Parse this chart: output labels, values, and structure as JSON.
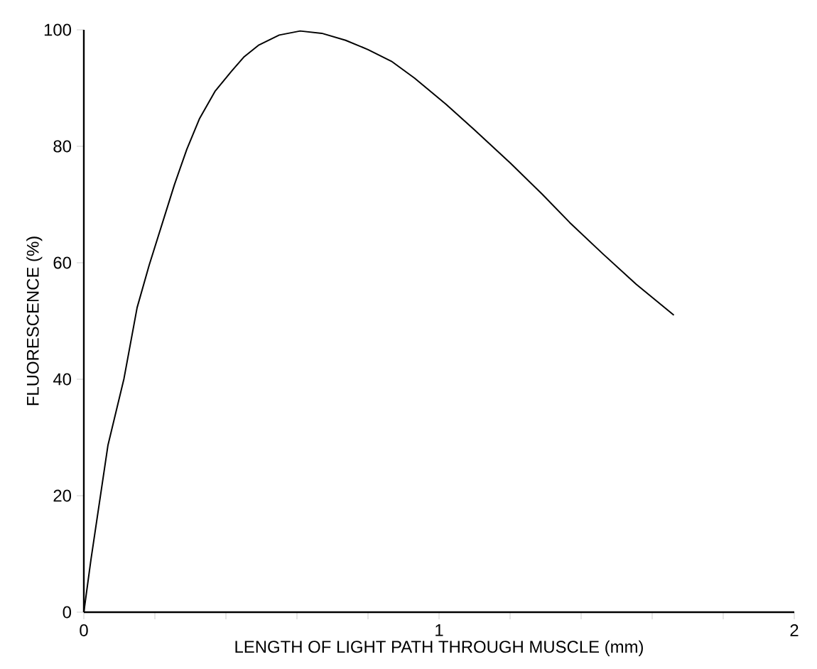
{
  "chart_data": {
    "type": "line",
    "xlabel": "LENGTH OF LIGHT PATH THROUGH MUSCLE (mm)",
    "ylabel": "FLUORESCENCE (%)",
    "xlim": [
      0,
      2
    ],
    "ylim": [
      0,
      100
    ],
    "xticks": [
      0,
      {
        "value": 0.2,
        "label": null
      },
      {
        "value": 0.4,
        "label": null
      },
      {
        "value": 0.6,
        "label": null
      },
      {
        "value": 0.8,
        "label": null
      },
      1,
      {
        "value": 1.2,
        "label": null
      },
      {
        "value": 1.4,
        "label": null
      },
      {
        "value": 1.6,
        "label": null
      },
      {
        "value": 1.8,
        "label": null
      },
      2
    ],
    "yticks": [
      0,
      20,
      40,
      60,
      80,
      100
    ],
    "marker": "none",
    "line_style": "solid",
    "series": [
      {
        "color": "#000000",
        "x": [
          0,
          0.02,
          0.068,
          0.113,
          0.15,
          0.184,
          0.255,
          0.29,
          0.326,
          0.37,
          0.416,
          0.45,
          0.493,
          0.55,
          0.609,
          0.67,
          0.737,
          0.8,
          0.866,
          0.931,
          1.02,
          1.1,
          1.201,
          1.29,
          1.368,
          1.46,
          1.555,
          1.661
        ],
        "values": [
          0,
          9,
          28.7,
          40.1,
          52.3,
          59.6,
          73.4,
          79.5,
          84.8,
          89.5,
          92.9,
          95.3,
          97.4,
          99.1,
          99.8,
          99.4,
          98.2,
          96.6,
          94.6,
          91.7,
          87.2,
          82.8,
          77.1,
          71.8,
          66.9,
          61.6,
          56.3,
          51.0
        ]
      }
    ]
  }
}
